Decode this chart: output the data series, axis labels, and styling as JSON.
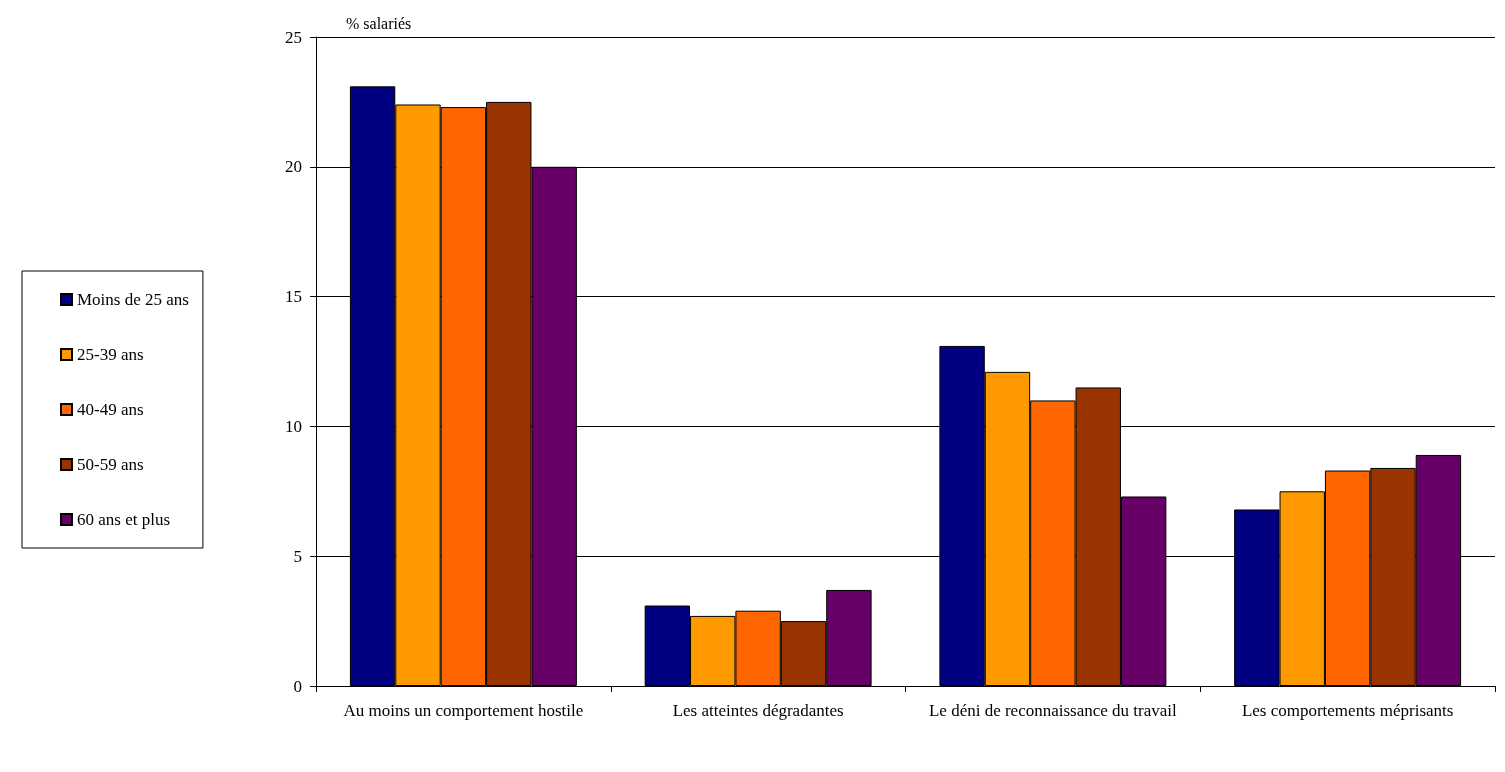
{
  "chart_data": {
    "type": "bar",
    "ylabel": "% salariés",
    "categories": [
      "Au moins un comportement hostile",
      "Les atteintes dégradantes",
      "Le déni de reconnaissance du travail",
      "Les comportements méprisants"
    ],
    "series": [
      {
        "name": "Moins de 25 ans",
        "color": "#000080",
        "values": [
          23.1,
          3.1,
          13.1,
          6.8
        ]
      },
      {
        "name": "25-39 ans",
        "color": "#ff9900",
        "values": [
          22.4,
          2.7,
          12.1,
          7.5
        ]
      },
      {
        "name": "40-49 ans",
        "color": "#ff6600",
        "values": [
          22.3,
          2.9,
          11.0,
          8.3
        ]
      },
      {
        "name": "50-59 ans",
        "color": "#993300",
        "values": [
          22.5,
          2.5,
          11.5,
          8.4
        ]
      },
      {
        "name": "60 ans et plus",
        "color": "#660066",
        "values": [
          20.0,
          3.7,
          7.3,
          8.9
        ]
      }
    ],
    "ylim": [
      0,
      25
    ],
    "yticks": [
      0,
      5,
      10,
      15,
      20,
      25
    ],
    "grid": "y",
    "legend": "left"
  }
}
